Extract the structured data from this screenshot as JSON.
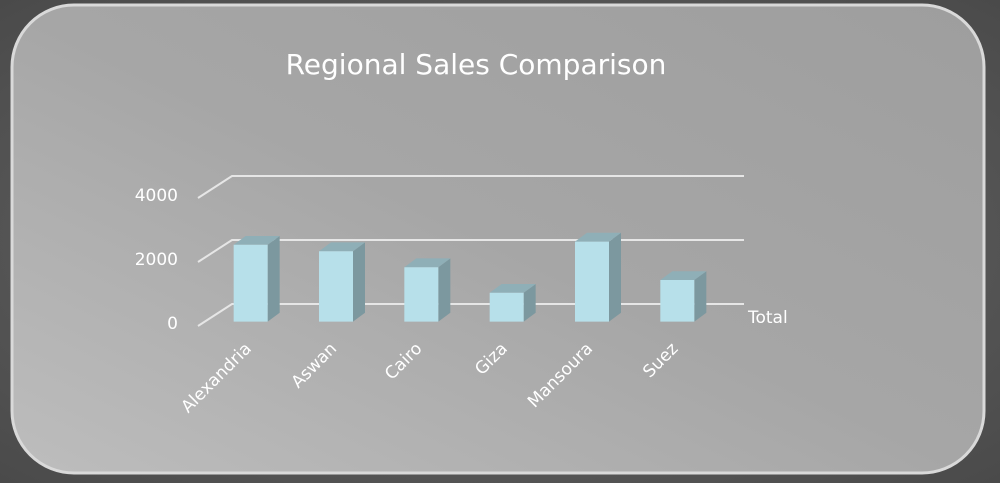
{
  "chart_data": {
    "type": "bar",
    "title": "Regional Sales Comparison",
    "categories": [
      "Alexandria",
      "Aswan",
      "Cairo",
      "Giza",
      "Mansoura",
      "Suez"
    ],
    "series": [
      {
        "name": "Total",
        "color": "#b7e0ea",
        "values": [
          2400,
          2200,
          1700,
          900,
          2500,
          1300
        ]
      }
    ],
    "ylim": [
      0,
      4000
    ],
    "yticks": [
      0,
      2000,
      4000
    ],
    "grid": true
  }
}
